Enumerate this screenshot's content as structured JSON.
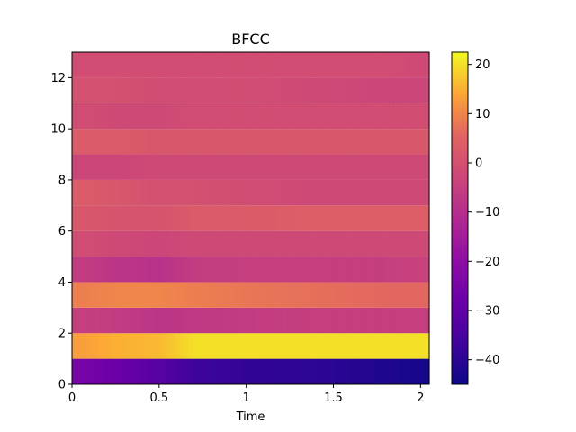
{
  "chart_data": {
    "type": "heatmap",
    "title": "BFCC",
    "xlabel": "Time",
    "ylabel": "",
    "xlim": [
      0,
      2.05
    ],
    "ylim": [
      0,
      13
    ],
    "x_ticks": [
      {
        "value": 0,
        "label": "0"
      },
      {
        "value": 0.5,
        "label": "0.5"
      },
      {
        "value": 1,
        "label": "1"
      },
      {
        "value": 1.5,
        "label": "1.5"
      },
      {
        "value": 2,
        "label": "2"
      }
    ],
    "y_ticks": [
      {
        "value": 0,
        "label": "0"
      },
      {
        "value": 2,
        "label": "2"
      },
      {
        "value": 4,
        "label": "4"
      },
      {
        "value": 6,
        "label": "6"
      },
      {
        "value": 8,
        "label": "8"
      },
      {
        "value": 10,
        "label": "10"
      },
      {
        "value": 12,
        "label": "12"
      }
    ],
    "colormap": "plasma",
    "colorbar": {
      "vmin": -45,
      "vmax": 22.5,
      "ticks": [
        {
          "value": 20,
          "label": "20"
        },
        {
          "value": 10,
          "label": "10"
        },
        {
          "value": 0,
          "label": "0"
        },
        {
          "value": -10,
          "label": "−10"
        },
        {
          "value": -20,
          "label": "−20"
        },
        {
          "value": -30,
          "label": "−30"
        },
        {
          "value": -40,
          "label": "−40"
        }
      ]
    },
    "columns": {
      "times": [
        0.05,
        0.25,
        0.5,
        0.7,
        1.0,
        1.4,
        1.8,
        2.05
      ],
      "note_rows": "rows[i] = coefficient i (0..12), values sampled at the listed times"
    },
    "rows": [
      [
        -25,
        -28,
        -32,
        -37,
        -39,
        -40,
        -42,
        -44
      ],
      [
        13,
        15,
        16,
        20,
        20,
        20,
        20,
        20
      ],
      [
        -5,
        -6,
        -8,
        -7,
        -6,
        -5,
        -5,
        -5
      ],
      [
        9,
        10,
        10,
        9,
        8,
        7,
        6,
        6
      ],
      [
        -6,
        -8,
        -9,
        -6,
        -5,
        -5,
        -5,
        -4
      ],
      [
        -1,
        -2,
        -3,
        -2,
        -2,
        -2,
        -2,
        -2
      ],
      [
        2,
        1,
        1,
        3,
        3,
        4,
        4,
        4
      ],
      [
        3,
        2,
        0,
        0,
        -1,
        -2,
        -2,
        -2
      ],
      [
        -3,
        -3,
        -2,
        -2,
        -2,
        -2,
        -2,
        -2
      ],
      [
        3,
        3,
        2,
        2,
        2,
        2,
        2,
        2
      ],
      [
        -1,
        -2,
        -2,
        -1,
        -1,
        -1,
        -1,
        -1
      ],
      [
        0,
        0,
        -1,
        -1,
        -1,
        -2,
        -3,
        -3
      ],
      [
        -1,
        -1,
        -1,
        -1,
        -1,
        -1,
        -1,
        -2
      ]
    ]
  }
}
